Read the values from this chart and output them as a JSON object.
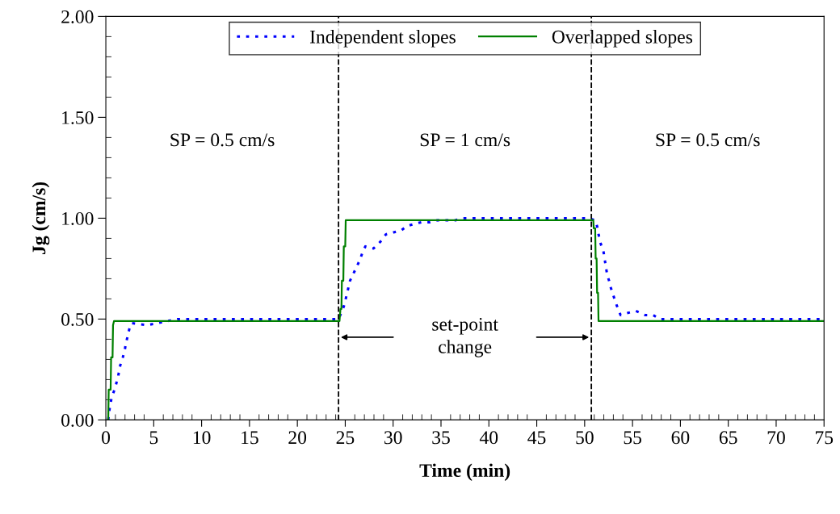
{
  "chart_data": {
    "type": "line",
    "xlabel": "Time (min)",
    "ylabel": "Jg (cm/s)",
    "xlim": [
      0,
      75
    ],
    "xticks": [
      0,
      5,
      10,
      15,
      20,
      25,
      30,
      35,
      40,
      45,
      50,
      55,
      60,
      65,
      70,
      75
    ],
    "ylim": [
      0,
      2
    ],
    "yticks": [
      {
        "value": 0,
        "label": "0.00"
      },
      {
        "value": 0.5,
        "label": "0.50"
      },
      {
        "value": 1,
        "label": "1.00"
      },
      {
        "value": 1.5,
        "label": "1.50"
      },
      {
        "value": 2,
        "label": "2.00"
      }
    ],
    "grid": false,
    "legend": "top",
    "marker": "none",
    "series": [
      {
        "name": "Independent slopes",
        "color": "#0000ff",
        "line_style": "dotted",
        "x": [
          0.25,
          0.34,
          0.6,
          0.98,
          1.3,
          1.5,
          1.77,
          1.95,
          2.1,
          2.45,
          2.7,
          3.5,
          4.35,
          5.95,
          7.5,
          24.3,
          24.67,
          24.9,
          25.15,
          25.5,
          25.8,
          26.1,
          26.5,
          26.8,
          27.1,
          27.95,
          28.4,
          28.8,
          29.25,
          30.05,
          30.85,
          31.4,
          32.1,
          32.95,
          33.8,
          34.65,
          36.5,
          37.3,
          50.3,
          51.1,
          51.3,
          51.45,
          51.7,
          51.95,
          52.15,
          52.35,
          52.55,
          52.7,
          53.05,
          53.25,
          53.5,
          53.75,
          54.45,
          55.35,
          56.3,
          57.15,
          57.85,
          58.8,
          75
        ],
        "values": [
          0,
          0.04,
          0.11,
          0.16,
          0.22,
          0.27,
          0.31,
          0.34,
          0.38,
          0.45,
          0.48,
          0.475,
          0.47,
          0.485,
          0.5,
          0.5,
          0.54,
          0.57,
          0.62,
          0.69,
          0.72,
          0.75,
          0.79,
          0.83,
          0.86,
          0.85,
          0.87,
          0.89,
          0.92,
          0.93,
          0.94,
          0.96,
          0.97,
          0.98,
          0.98,
          0.99,
          0.99,
          1.0,
          1.0,
          0.99,
          0.96,
          0.92,
          0.87,
          0.84,
          0.78,
          0.72,
          0.69,
          0.66,
          0.61,
          0.58,
          0.55,
          0.52,
          0.53,
          0.54,
          0.52,
          0.52,
          0.5,
          0.5,
          0.5
        ]
      },
      {
        "name": "Overlapped slopes",
        "color": "#008000",
        "line_style": "solid",
        "x": [
          0.25,
          0.3,
          0.5,
          0.55,
          0.7,
          0.75,
          0.85,
          24.4,
          24.5,
          24.6,
          24.65,
          24.8,
          24.85,
          25.0,
          25.05,
          50.9,
          50.95,
          51.1,
          51.15,
          51.25,
          51.3,
          51.4,
          51.45,
          75
        ],
        "values": [
          0,
          0.15,
          0.15,
          0.31,
          0.31,
          0.47,
          0.49,
          0.49,
          0.55,
          0.55,
          0.69,
          0.69,
          0.86,
          0.86,
          0.99,
          0.99,
          0.95,
          0.95,
          0.8,
          0.8,
          0.63,
          0.63,
          0.49,
          0.49
        ]
      }
    ],
    "ref_lines": [
      {
        "axis": "x",
        "value": 24.3,
        "color": "#000000",
        "line_style": "dashed"
      },
      {
        "axis": "x",
        "value": 50.7,
        "color": "#000000",
        "line_style": "dashed"
      }
    ],
    "annotations": [
      "SP = 0.5 cm/s",
      "SP = 1 cm/s",
      "SP = 0.5 cm/s",
      "set-point\nchange"
    ]
  }
}
